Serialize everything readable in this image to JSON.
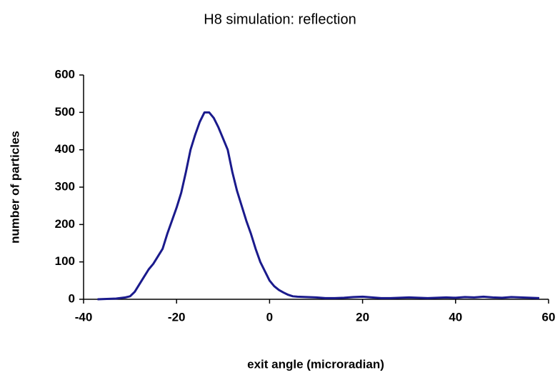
{
  "chart_data": {
    "type": "line",
    "title": "H8 simulation: reflection",
    "x_label": "exit angle (microradian)",
    "y_label": "number of particles",
    "x": [
      -37,
      -33,
      -31,
      -30,
      -29,
      -28,
      -27,
      -26,
      -25,
      -24,
      -23,
      -22,
      -21,
      -20,
      -19,
      -18,
      -17,
      -16,
      -15,
      -14,
      -13,
      -12,
      -11,
      -10,
      -9,
      -8,
      -7,
      -6,
      -5,
      -4,
      -3,
      -2,
      -1,
      0,
      1,
      2,
      3,
      4,
      5,
      6,
      8,
      10,
      12,
      14,
      16,
      18,
      20,
      22,
      24,
      26,
      28,
      30,
      32,
      34,
      36,
      38,
      40,
      42,
      44,
      46,
      48,
      50,
      52,
      54,
      56,
      58
    ],
    "series": [
      {
        "name": "reflection",
        "color": "#1a1a8c",
        "values": [
          0,
          2,
          5,
          8,
          20,
          40,
          60,
          80,
          95,
          115,
          135,
          175,
          210,
          245,
          285,
          340,
          400,
          440,
          475,
          500,
          500,
          485,
          460,
          430,
          400,
          340,
          290,
          250,
          210,
          175,
          135,
          100,
          75,
          50,
          35,
          25,
          18,
          12,
          8,
          7,
          6,
          5,
          3,
          3,
          4,
          6,
          7,
          5,
          3,
          3,
          4,
          5,
          4,
          3,
          4,
          5,
          4,
          6,
          5,
          7,
          5,
          4,
          6,
          5,
          4,
          3
        ]
      }
    ],
    "xlim": [
      -40,
      60
    ],
    "xticks": [
      -40,
      -20,
      0,
      20,
      40,
      60
    ],
    "ylim": [
      0,
      600
    ],
    "yticks": [
      0,
      100,
      200,
      300,
      400,
      500,
      600
    ],
    "grid": false
  }
}
